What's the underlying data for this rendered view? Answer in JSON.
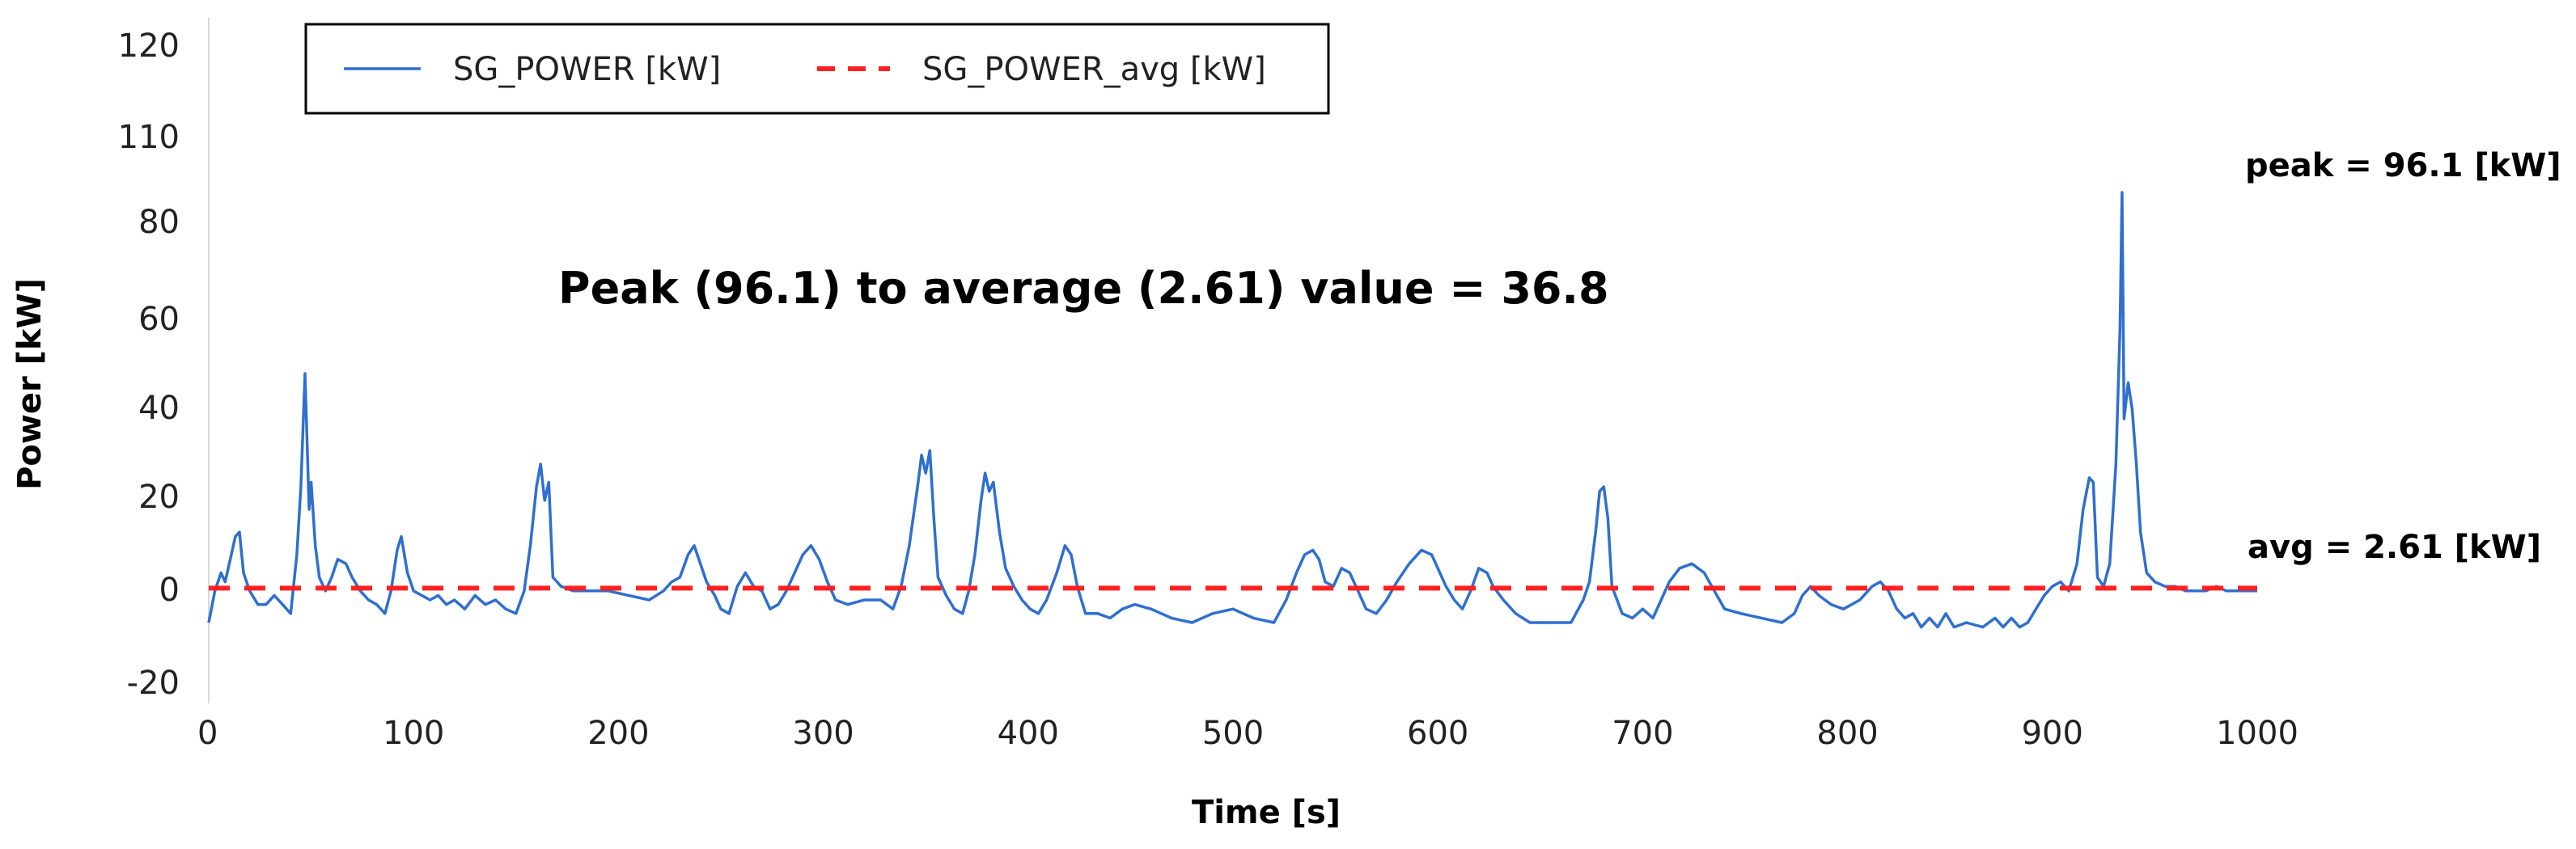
{
  "chart_data": {
    "type": "line",
    "title": "",
    "xlabel": "Time [s]",
    "ylabel": "Power [kW]",
    "xlim": [
      0,
      1000
    ],
    "x_ticks": [
      0,
      100,
      200,
      300,
      400,
      500,
      600,
      700,
      800,
      900,
      1000
    ],
    "y_tick_labels": [
      "-20",
      "0",
      "20",
      "40",
      "60",
      "80",
      "110",
      "120"
    ],
    "grid": false,
    "legend_position": "top-left",
    "annotations": {
      "ratio": "Peak (96.1) to average (2.61) value = 36.8",
      "peak": "peak = 96.1 [kW]",
      "avg": "avg = 2.61 [kW]"
    },
    "series": [
      {
        "name": "SG_POWER [kW]",
        "color": "#2f6fd0",
        "style": "solid",
        "points": [
          [
            0,
            -5
          ],
          [
            3,
            2
          ],
          [
            6,
            6
          ],
          [
            8,
            4
          ],
          [
            11,
            10
          ],
          [
            13,
            14
          ],
          [
            15,
            15
          ],
          [
            17,
            6
          ],
          [
            20,
            2
          ],
          [
            24,
            -1
          ],
          [
            28,
            -1
          ],
          [
            32,
            1
          ],
          [
            36,
            -1
          ],
          [
            40,
            -3
          ],
          [
            43,
            10
          ],
          [
            45,
            25
          ],
          [
            47,
            50
          ],
          [
            49,
            20
          ],
          [
            50,
            26
          ],
          [
            52,
            12
          ],
          [
            54,
            5
          ],
          [
            57,
            2
          ],
          [
            60,
            5
          ],
          [
            63,
            9
          ],
          [
            67,
            8
          ],
          [
            70,
            5
          ],
          [
            74,
            2
          ],
          [
            78,
            0
          ],
          [
            82,
            -1
          ],
          [
            86,
            -3
          ],
          [
            89,
            2
          ],
          [
            92,
            11
          ],
          [
            94,
            14
          ],
          [
            97,
            6
          ],
          [
            100,
            2
          ],
          [
            104,
            1
          ],
          [
            108,
            0
          ],
          [
            112,
            1
          ],
          [
            116,
            -1
          ],
          [
            120,
            0
          ],
          [
            125,
            -2
          ],
          [
            130,
            1
          ],
          [
            135,
            -1
          ],
          [
            140,
            0
          ],
          [
            145,
            -2
          ],
          [
            150,
            -3
          ],
          [
            154,
            2
          ],
          [
            157,
            12
          ],
          [
            160,
            25
          ],
          [
            162,
            30
          ],
          [
            164,
            22
          ],
          [
            166,
            26
          ],
          [
            168,
            5
          ],
          [
            172,
            3
          ],
          [
            178,
            2
          ],
          [
            185,
            2
          ],
          [
            195,
            2
          ],
          [
            205,
            1
          ],
          [
            215,
            0
          ],
          [
            222,
            2
          ],
          [
            226,
            4
          ],
          [
            230,
            5
          ],
          [
            234,
            10
          ],
          [
            237,
            12
          ],
          [
            240,
            8
          ],
          [
            243,
            4
          ],
          [
            247,
            1
          ],
          [
            250,
            -2
          ],
          [
            254,
            -3
          ],
          [
            258,
            3
          ],
          [
            262,
            6
          ],
          [
            266,
            3
          ],
          [
            270,
            2
          ],
          [
            274,
            -2
          ],
          [
            278,
            -1
          ],
          [
            282,
            2
          ],
          [
            286,
            6
          ],
          [
            290,
            10
          ],
          [
            294,
            12
          ],
          [
            298,
            9
          ],
          [
            302,
            4
          ],
          [
            306,
            0
          ],
          [
            312,
            -1
          ],
          [
            320,
            0
          ],
          [
            328,
            0
          ],
          [
            334,
            -2
          ],
          [
            338,
            3
          ],
          [
            342,
            12
          ],
          [
            346,
            25
          ],
          [
            348,
            32
          ],
          [
            350,
            28
          ],
          [
            352,
            33
          ],
          [
            354,
            18
          ],
          [
            356,
            5
          ],
          [
            360,
            1
          ],
          [
            364,
            -2
          ],
          [
            368,
            -3
          ],
          [
            371,
            2
          ],
          [
            374,
            10
          ],
          [
            377,
            22
          ],
          [
            379,
            28
          ],
          [
            381,
            24
          ],
          [
            383,
            26
          ],
          [
            386,
            15
          ],
          [
            389,
            7
          ],
          [
            393,
            3
          ],
          [
            397,
            0
          ],
          [
            401,
            -2
          ],
          [
            405,
            -3
          ],
          [
            409,
            0
          ],
          [
            414,
            6
          ],
          [
            418,
            12
          ],
          [
            421,
            10
          ],
          [
            424,
            3
          ],
          [
            428,
            -3
          ],
          [
            434,
            -3
          ],
          [
            440,
            -4
          ],
          [
            446,
            -2
          ],
          [
            452,
            -1
          ],
          [
            460,
            -2
          ],
          [
            470,
            -4
          ],
          [
            480,
            -5
          ],
          [
            490,
            -3
          ],
          [
            500,
            -2
          ],
          [
            510,
            -4
          ],
          [
            520,
            -5
          ],
          [
            526,
            0
          ],
          [
            531,
            6
          ],
          [
            535,
            10
          ],
          [
            539,
            11
          ],
          [
            542,
            9
          ],
          [
            545,
            4
          ],
          [
            549,
            3
          ],
          [
            553,
            7
          ],
          [
            557,
            6
          ],
          [
            561,
            2
          ],
          [
            565,
            -2
          ],
          [
            570,
            -3
          ],
          [
            575,
            0
          ],
          [
            580,
            4
          ],
          [
            586,
            8
          ],
          [
            592,
            11
          ],
          [
            597,
            10
          ],
          [
            600,
            7
          ],
          [
            604,
            3
          ],
          [
            608,
            0
          ],
          [
            612,
            -2
          ],
          [
            616,
            2
          ],
          [
            620,
            7
          ],
          [
            624,
            6
          ],
          [
            627,
            3
          ],
          [
            632,
            0
          ],
          [
            638,
            -3
          ],
          [
            645,
            -5
          ],
          [
            655,
            -5
          ],
          [
            665,
            -5
          ],
          [
            671,
            0
          ],
          [
            674,
            4
          ],
          [
            677,
            15
          ],
          [
            679,
            24
          ],
          [
            681,
            25
          ],
          [
            683,
            18
          ],
          [
            685,
            3
          ],
          [
            690,
            -3
          ],
          [
            695,
            -4
          ],
          [
            700,
            -2
          ],
          [
            705,
            -4
          ],
          [
            709,
            0
          ],
          [
            713,
            4
          ],
          [
            718,
            7
          ],
          [
            724,
            8
          ],
          [
            730,
            6
          ],
          [
            735,
            2
          ],
          [
            740,
            -2
          ],
          [
            748,
            -3
          ],
          [
            758,
            -4
          ],
          [
            768,
            -5
          ],
          [
            774,
            -3
          ],
          [
            778,
            1
          ],
          [
            782,
            3
          ],
          [
            786,
            1
          ],
          [
            792,
            -1
          ],
          [
            798,
            -2
          ],
          [
            806,
            0
          ],
          [
            812,
            3
          ],
          [
            816,
            4
          ],
          [
            820,
            2
          ],
          [
            824,
            -2
          ],
          [
            828,
            -4
          ],
          [
            832,
            -3
          ],
          [
            836,
            -6
          ],
          [
            840,
            -4
          ],
          [
            844,
            -6
          ],
          [
            848,
            -3
          ],
          [
            852,
            -6
          ],
          [
            858,
            -5
          ],
          [
            866,
            -6
          ],
          [
            872,
            -4
          ],
          [
            876,
            -6
          ],
          [
            880,
            -4
          ],
          [
            884,
            -6
          ],
          [
            888,
            -5
          ],
          [
            892,
            -2
          ],
          [
            896,
            1
          ],
          [
            900,
            3
          ],
          [
            904,
            4
          ],
          [
            908,
            2
          ],
          [
            912,
            8
          ],
          [
            915,
            20
          ],
          [
            918,
            27
          ],
          [
            920,
            26
          ],
          [
            922,
            5
          ],
          [
            925,
            3
          ],
          [
            928,
            8
          ],
          [
            931,
            30
          ],
          [
            933,
            60
          ],
          [
            934,
            90
          ],
          [
            935,
            40
          ],
          [
            937,
            48
          ],
          [
            939,
            42
          ],
          [
            941,
            30
          ],
          [
            943,
            15
          ],
          [
            946,
            6
          ],
          [
            950,
            4
          ],
          [
            955,
            3
          ],
          [
            960,
            3
          ],
          [
            965,
            2
          ],
          [
            970,
            2
          ],
          [
            975,
            2
          ],
          [
            980,
            3
          ],
          [
            985,
            2
          ],
          [
            990,
            2
          ],
          [
            995,
            2
          ],
          [
            1000,
            2
          ]
        ]
      },
      {
        "name": "SG_POWER_avg [kW]",
        "color": "#ff2020",
        "style": "dashed",
        "points": [
          [
            0,
            2.61
          ],
          [
            1000,
            2.61
          ]
        ]
      }
    ]
  }
}
